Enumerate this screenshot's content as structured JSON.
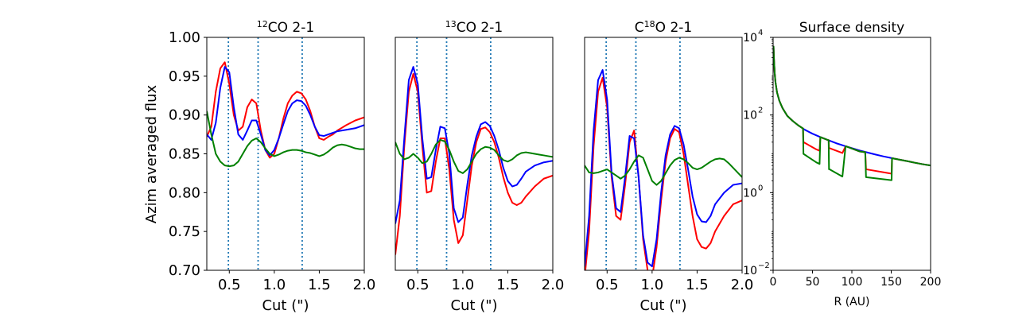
{
  "figure": {
    "ylabel": "Azim averaged flux",
    "colors": {
      "red": "#ff0000",
      "blue": "#0000ff",
      "green": "#008000",
      "vline": "#1f77b4"
    }
  },
  "chart_data": [
    {
      "type": "line",
      "title": "12CO 2-1",
      "title_main": "CO 2-1",
      "title_sup": "12",
      "title_pre": "",
      "xlabel": "Cut (\")",
      "xlim": [
        0.25,
        2.0
      ],
      "ylim": [
        0.7,
        1.0
      ],
      "xticks": [
        0.5,
        1.0,
        1.5,
        2.0
      ],
      "xtick_labels": [
        "0.5",
        "1.0",
        "1.5",
        "2.0"
      ],
      "yticks": [
        0.7,
        0.75,
        0.8,
        0.85,
        0.9,
        0.95,
        1.0
      ],
      "ytick_labels": [
        "0.70",
        "0.75",
        "0.80",
        "0.85",
        "0.90",
        "0.95",
        "1.00"
      ],
      "vlines": [
        0.49,
        0.82,
        1.31
      ],
      "series": [
        {
          "name": "red",
          "color": "#ff0000",
          "x": [
            0.25,
            0.3,
            0.35,
            0.4,
            0.45,
            0.5,
            0.55,
            0.6,
            0.65,
            0.7,
            0.75,
            0.8,
            0.85,
            0.9,
            0.95,
            1.0,
            1.05,
            1.1,
            1.15,
            1.2,
            1.25,
            1.3,
            1.35,
            1.4,
            1.45,
            1.5,
            1.55,
            1.6,
            1.65,
            1.7,
            1.8,
            1.9,
            2.0
          ],
          "y": [
            0.872,
            0.885,
            0.93,
            0.96,
            0.968,
            0.94,
            0.9,
            0.88,
            0.885,
            0.91,
            0.92,
            0.915,
            0.88,
            0.855,
            0.845,
            0.85,
            0.87,
            0.895,
            0.915,
            0.925,
            0.93,
            0.928,
            0.92,
            0.905,
            0.885,
            0.87,
            0.868,
            0.872,
            0.875,
            0.88,
            0.887,
            0.893,
            0.897
          ]
        },
        {
          "name": "blue",
          "color": "#0000ff",
          "x": [
            0.25,
            0.3,
            0.35,
            0.4,
            0.45,
            0.5,
            0.55,
            0.6,
            0.65,
            0.7,
            0.75,
            0.8,
            0.85,
            0.9,
            0.95,
            1.0,
            1.05,
            1.1,
            1.15,
            1.2,
            1.25,
            1.3,
            1.35,
            1.4,
            1.45,
            1.5,
            1.55,
            1.6,
            1.65,
            1.7,
            1.8,
            1.9,
            2.0
          ],
          "y": [
            0.875,
            0.868,
            0.89,
            0.935,
            0.962,
            0.955,
            0.91,
            0.875,
            0.868,
            0.88,
            0.893,
            0.893,
            0.875,
            0.855,
            0.848,
            0.855,
            0.87,
            0.888,
            0.905,
            0.915,
            0.919,
            0.918,
            0.912,
            0.9,
            0.885,
            0.874,
            0.873,
            0.875,
            0.877,
            0.879,
            0.881,
            0.883,
            0.887
          ]
        },
        {
          "name": "green",
          "color": "#008000",
          "x": [
            0.25,
            0.3,
            0.35,
            0.4,
            0.45,
            0.5,
            0.55,
            0.6,
            0.65,
            0.7,
            0.75,
            0.8,
            0.85,
            0.9,
            0.95,
            1.0,
            1.05,
            1.1,
            1.15,
            1.2,
            1.25,
            1.3,
            1.35,
            1.4,
            1.45,
            1.5,
            1.55,
            1.6,
            1.65,
            1.7,
            1.75,
            1.8,
            1.85,
            1.9,
            1.95,
            2.0
          ],
          "y": [
            0.905,
            0.875,
            0.85,
            0.84,
            0.835,
            0.834,
            0.835,
            0.84,
            0.85,
            0.86,
            0.867,
            0.87,
            0.865,
            0.857,
            0.85,
            0.847,
            0.849,
            0.852,
            0.854,
            0.855,
            0.855,
            0.854,
            0.852,
            0.851,
            0.849,
            0.847,
            0.849,
            0.853,
            0.858,
            0.861,
            0.862,
            0.861,
            0.859,
            0.857,
            0.856,
            0.856
          ]
        }
      ]
    },
    {
      "type": "line",
      "title": "13CO 2-1",
      "title_main": "CO 2-1",
      "title_sup": "13",
      "title_pre": "",
      "xlabel": "Cut (\")",
      "xlim": [
        0.25,
        2.0
      ],
      "ylim": [
        0.7,
        1.0
      ],
      "xticks": [
        0.5,
        1.0,
        1.5,
        2.0
      ],
      "xtick_labels": [
        "0.5",
        "1.0",
        "1.5",
        "2.0"
      ],
      "yticks": [],
      "ytick_labels": [],
      "vlines": [
        0.49,
        0.82,
        1.31
      ],
      "series": [
        {
          "name": "red",
          "color": "#ff0000",
          "x": [
            0.25,
            0.3,
            0.35,
            0.4,
            0.45,
            0.5,
            0.55,
            0.6,
            0.65,
            0.7,
            0.75,
            0.8,
            0.85,
            0.9,
            0.95,
            1.0,
            1.05,
            1.1,
            1.15,
            1.2,
            1.25,
            1.3,
            1.35,
            1.4,
            1.45,
            1.5,
            1.55,
            1.6,
            1.65,
            1.7,
            1.8,
            1.9,
            2.0
          ],
          "y": [
            0.72,
            0.77,
            0.86,
            0.93,
            0.953,
            0.93,
            0.86,
            0.8,
            0.802,
            0.84,
            0.87,
            0.87,
            0.83,
            0.765,
            0.735,
            0.745,
            0.79,
            0.835,
            0.865,
            0.882,
            0.884,
            0.878,
            0.865,
            0.845,
            0.82,
            0.8,
            0.787,
            0.784,
            0.787,
            0.795,
            0.808,
            0.818,
            0.822
          ]
        },
        {
          "name": "blue",
          "color": "#0000ff",
          "x": [
            0.25,
            0.3,
            0.35,
            0.4,
            0.45,
            0.5,
            0.55,
            0.6,
            0.65,
            0.7,
            0.75,
            0.8,
            0.85,
            0.9,
            0.95,
            1.0,
            1.05,
            1.1,
            1.15,
            1.2,
            1.25,
            1.3,
            1.35,
            1.4,
            1.45,
            1.5,
            1.55,
            1.6,
            1.65,
            1.7,
            1.8,
            1.9,
            2.0
          ],
          "y": [
            0.76,
            0.79,
            0.87,
            0.945,
            0.962,
            0.94,
            0.87,
            0.818,
            0.82,
            0.855,
            0.885,
            0.883,
            0.85,
            0.78,
            0.762,
            0.768,
            0.81,
            0.848,
            0.872,
            0.888,
            0.891,
            0.886,
            0.873,
            0.855,
            0.832,
            0.815,
            0.808,
            0.81,
            0.818,
            0.827,
            0.835,
            0.839,
            0.841
          ]
        },
        {
          "name": "green",
          "color": "#008000",
          "x": [
            0.25,
            0.3,
            0.35,
            0.4,
            0.45,
            0.5,
            0.55,
            0.6,
            0.65,
            0.7,
            0.75,
            0.8,
            0.85,
            0.9,
            0.95,
            1.0,
            1.05,
            1.1,
            1.15,
            1.2,
            1.25,
            1.3,
            1.35,
            1.4,
            1.45,
            1.5,
            1.55,
            1.6,
            1.65,
            1.7,
            1.75,
            1.8,
            1.85,
            1.9,
            1.95,
            2.0
          ],
          "y": [
            0.865,
            0.85,
            0.843,
            0.845,
            0.85,
            0.845,
            0.838,
            0.84,
            0.85,
            0.862,
            0.868,
            0.866,
            0.855,
            0.84,
            0.828,
            0.825,
            0.83,
            0.84,
            0.85,
            0.856,
            0.859,
            0.858,
            0.855,
            0.848,
            0.842,
            0.84,
            0.843,
            0.848,
            0.851,
            0.852,
            0.851,
            0.85,
            0.849,
            0.848,
            0.847,
            0.846
          ]
        }
      ]
    },
    {
      "type": "line",
      "title": "C18O 2-1",
      "title_main": "O 2-1",
      "title_sup": "18",
      "title_pre": "C",
      "xlabel": "Cut (\")",
      "xlim": [
        0.25,
        2.0
      ],
      "ylim": [
        0.7,
        1.0
      ],
      "xticks": [
        0.5,
        1.0,
        1.5,
        2.0
      ],
      "xtick_labels": [
        "0.5",
        "1.0",
        "1.5",
        "2.0"
      ],
      "yticks": [],
      "ytick_labels": [],
      "vlines": [
        0.49,
        0.82,
        1.31
      ],
      "series": [
        {
          "name": "red",
          "color": "#ff0000",
          "x": [
            0.25,
            0.3,
            0.35,
            0.4,
            0.45,
            0.5,
            0.55,
            0.6,
            0.65,
            0.7,
            0.75,
            0.8,
            0.85,
            0.9,
            0.95,
            1.0,
            1.05,
            1.1,
            1.15,
            1.2,
            1.25,
            1.3,
            1.35,
            1.4,
            1.45,
            1.5,
            1.55,
            1.6,
            1.65,
            1.7,
            1.8,
            1.9,
            2.0
          ],
          "y": [
            0.69,
            0.75,
            0.86,
            0.93,
            0.948,
            0.91,
            0.82,
            0.77,
            0.765,
            0.81,
            0.865,
            0.88,
            0.82,
            0.74,
            0.7,
            0.69,
            0.73,
            0.79,
            0.84,
            0.87,
            0.882,
            0.878,
            0.85,
            0.81,
            0.77,
            0.74,
            0.73,
            0.728,
            0.735,
            0.75,
            0.77,
            0.785,
            0.79
          ]
        },
        {
          "name": "blue",
          "color": "#0000ff",
          "x": [
            0.25,
            0.3,
            0.35,
            0.4,
            0.45,
            0.5,
            0.55,
            0.6,
            0.65,
            0.7,
            0.75,
            0.8,
            0.85,
            0.9,
            0.95,
            1.0,
            1.05,
            1.1,
            1.15,
            1.2,
            1.25,
            1.3,
            1.35,
            1.4,
            1.45,
            1.5,
            1.55,
            1.6,
            1.65,
            1.7,
            1.8,
            1.9,
            2.0
          ],
          "y": [
            0.705,
            0.77,
            0.88,
            0.945,
            0.958,
            0.92,
            0.825,
            0.78,
            0.775,
            0.82,
            0.873,
            0.87,
            0.82,
            0.745,
            0.71,
            0.705,
            0.74,
            0.8,
            0.848,
            0.875,
            0.886,
            0.883,
            0.862,
            0.83,
            0.795,
            0.772,
            0.763,
            0.762,
            0.77,
            0.785,
            0.8,
            0.81,
            0.812
          ]
        },
        {
          "name": "green",
          "color": "#008000",
          "x": [
            0.25,
            0.3,
            0.35,
            0.4,
            0.45,
            0.5,
            0.55,
            0.6,
            0.65,
            0.7,
            0.75,
            0.8,
            0.85,
            0.9,
            0.95,
            1.0,
            1.05,
            1.1,
            1.15,
            1.2,
            1.25,
            1.3,
            1.35,
            1.4,
            1.45,
            1.5,
            1.55,
            1.6,
            1.65,
            1.7,
            1.75,
            1.8,
            1.85,
            1.9,
            1.95,
            2.0
          ],
          "y": [
            0.835,
            0.826,
            0.825,
            0.826,
            0.828,
            0.83,
            0.826,
            0.822,
            0.818,
            0.822,
            0.83,
            0.84,
            0.848,
            0.845,
            0.83,
            0.815,
            0.81,
            0.815,
            0.825,
            0.835,
            0.842,
            0.845,
            0.843,
            0.838,
            0.832,
            0.83,
            0.832,
            0.836,
            0.84,
            0.843,
            0.844,
            0.843,
            0.838,
            0.832,
            0.826,
            0.82
          ]
        }
      ]
    },
    {
      "type": "line",
      "title": "Surface density",
      "xlabel": "R (AU)",
      "yscale": "log",
      "xlim": [
        0,
        200
      ],
      "ylim": [
        0.01,
        10000
      ],
      "xticks": [
        0,
        50,
        100,
        150,
        200
      ],
      "xtick_labels": [
        "0",
        "50",
        "100",
        "150",
        "200"
      ],
      "yticks": [
        0.01,
        1,
        100,
        10000
      ],
      "ytick_labels": [
        {
          "base": "10",
          "exp": "−2"
        },
        {
          "base": "10",
          "exp": "0"
        },
        {
          "base": "10",
          "exp": "2"
        },
        {
          "base": "10",
          "exp": "4"
        }
      ],
      "series": [
        {
          "name": "blue",
          "color": "#0000ff",
          "x": [
            0.5,
            1,
            2,
            3,
            5,
            8,
            12,
            18,
            25,
            32,
            40,
            50,
            60,
            70,
            80,
            90,
            100,
            110,
            120,
            130,
            140,
            150,
            160,
            170,
            180,
            190,
            200
          ],
          "y": [
            6000,
            3000,
            1200,
            700,
            380,
            230,
            150,
            95,
            70,
            54,
            42,
            33,
            27,
            22.5,
            18.8,
            16.2,
            14,
            12.2,
            10.8,
            9.6,
            8.6,
            7.8,
            7.1,
            6.5,
            5.9,
            5.4,
            5.0
          ]
        },
        {
          "name": "red",
          "color": "#ff0000",
          "x": [
            0.5,
            1,
            2,
            3,
            5,
            8,
            12,
            18,
            25,
            32,
            38,
            38.5,
            55,
            59,
            60,
            70,
            70.5,
            71,
            71.5,
            88,
            92,
            93,
            110,
            117,
            118,
            150,
            150.5,
            151,
            160,
            170,
            180,
            190,
            200
          ],
          "y": [
            6000,
            3000,
            1200,
            700,
            380,
            230,
            150,
            95,
            70,
            54,
            45,
            20,
            13,
            12,
            27,
            22.5,
            22.5,
            14,
            14,
            10.5,
            15.5,
            15.5,
            11.5,
            11,
            4,
            3.1,
            3.1,
            7.7,
            7.1,
            6.5,
            5.9,
            5.4,
            5.0
          ]
        },
        {
          "name": "green",
          "color": "#008000",
          "x": [
            0.5,
            1,
            2,
            3,
            5,
            8,
            12,
            18,
            25,
            32,
            38,
            38.5,
            55,
            59,
            60,
            70,
            70.5,
            71,
            71.5,
            88,
            92,
            93,
            110,
            117,
            118,
            150,
            150.5,
            151,
            160,
            170,
            180,
            190,
            200
          ],
          "y": [
            6000,
            3000,
            1200,
            700,
            380,
            230,
            150,
            95,
            70,
            54,
            45,
            10,
            6,
            5.5,
            27,
            22.5,
            22.5,
            4,
            4,
            2.6,
            15.5,
            15.5,
            11.5,
            11,
            2.5,
            2.1,
            2.1,
            7.7,
            7.1,
            6.5,
            5.9,
            5.4,
            5.0
          ]
        }
      ]
    }
  ]
}
